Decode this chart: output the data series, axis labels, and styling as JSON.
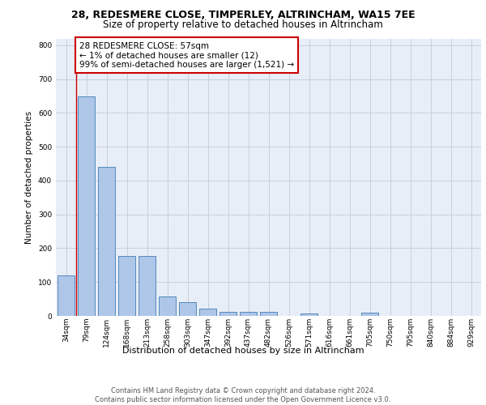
{
  "title1": "28, REDESMERE CLOSE, TIMPERLEY, ALTRINCHAM, WA15 7EE",
  "title2": "Size of property relative to detached houses in Altrincham",
  "xlabel": "Distribution of detached houses by size in Altrincham",
  "ylabel": "Number of detached properties",
  "categories": [
    "34sqm",
    "79sqm",
    "124sqm",
    "168sqm",
    "213sqm",
    "258sqm",
    "303sqm",
    "347sqm",
    "392sqm",
    "437sqm",
    "482sqm",
    "526sqm",
    "571sqm",
    "616sqm",
    "661sqm",
    "705sqm",
    "750sqm",
    "795sqm",
    "840sqm",
    "884sqm",
    "929sqm"
  ],
  "values": [
    120,
    648,
    440,
    178,
    178,
    57,
    40,
    22,
    12,
    13,
    11,
    0,
    8,
    0,
    0,
    9,
    0,
    0,
    0,
    0,
    0
  ],
  "bar_color": "#aec6e8",
  "bar_edge_color": "#5589bb",
  "annotation_box_text": "28 REDESMERE CLOSE: 57sqm\n← 1% of detached houses are smaller (12)\n99% of semi-detached houses are larger (1,521) →",
  "annotation_box_color": "#ffffff",
  "annotation_box_edge_color": "#cc0000",
  "vline_color": "#cc0000",
  "ylim": [
    0,
    820
  ],
  "yticks": [
    0,
    100,
    200,
    300,
    400,
    500,
    600,
    700,
    800
  ],
  "grid_color": "#c8d0dc",
  "bg_color": "#e8eef8",
  "footer_text": "Contains HM Land Registry data © Crown copyright and database right 2024.\nContains public sector information licensed under the Open Government Licence v3.0.",
  "title1_fontsize": 9,
  "title2_fontsize": 8.5,
  "xlabel_fontsize": 8,
  "ylabel_fontsize": 7.5,
  "tick_fontsize": 6.5,
  "annotation_fontsize": 7.5,
  "footer_fontsize": 6
}
